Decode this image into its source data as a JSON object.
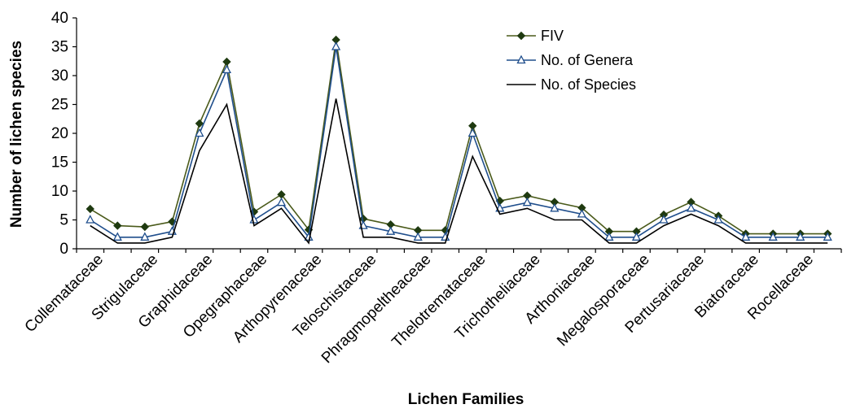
{
  "chart_data": {
    "type": "line",
    "title": "",
    "xlabel": "Lichen Families",
    "ylabel": "Number of lichen species",
    "ylim": [
      0,
      40
    ],
    "yticks": [
      0,
      5,
      10,
      15,
      20,
      25,
      30,
      35,
      40
    ],
    "grid": false,
    "legend_position": "top-right",
    "category_labels_every": 2,
    "categories": [
      "Collemataceae",
      "c2",
      "Strigulaceae",
      "c4",
      "Graphidaceae",
      "c6",
      "Opegraphaceae",
      "c8",
      "Arthopyrenaceae",
      "c10",
      "Teloschistaceae",
      "c12",
      "Phragmopeltheaceae",
      "c14",
      "Thelotremataceae",
      "c16",
      "Trichotheliaceae",
      "c18",
      "Arthoniaceae",
      "c20",
      "Megalosporaceae",
      "c22",
      "Pertusariaceae",
      "c24",
      "Biatoraceae",
      "c26",
      "Rocellaceae",
      "c28"
    ],
    "series": [
      {
        "name": "FIV",
        "color": "#4a5a1a",
        "marker": "diamond",
        "marker_color": "#1f3a10",
        "values": [
          6.9,
          4.0,
          3.8,
          4.7,
          21.7,
          32.4,
          6.4,
          9.4,
          3.3,
          36.2,
          5.2,
          4.2,
          3.2,
          3.2,
          21.3,
          8.3,
          9.2,
          8.1,
          7.1,
          3.0,
          3.0,
          5.9,
          8.1,
          5.7,
          2.6,
          2.6,
          2.6,
          2.6
        ]
      },
      {
        "name": "No. of Genera",
        "color": "#1f4e8c",
        "marker": "triangle",
        "marker_color": "#1f4e8c",
        "values": [
          5,
          2,
          2,
          3,
          20,
          31,
          5,
          8,
          2,
          35,
          4,
          3,
          2,
          2,
          20,
          7,
          8,
          7,
          6,
          2,
          2,
          5,
          7,
          5,
          2,
          2,
          2,
          2
        ]
      },
      {
        "name": "No. of Species",
        "color": "#000000",
        "marker": "none",
        "marker_color": "#000000",
        "values": [
          4,
          1,
          1,
          2,
          17,
          25,
          4,
          7,
          1,
          26,
          2,
          2,
          1,
          1,
          16,
          6,
          7,
          5,
          5,
          1,
          1,
          4,
          6,
          4,
          1,
          1,
          1,
          1
        ]
      }
    ]
  }
}
